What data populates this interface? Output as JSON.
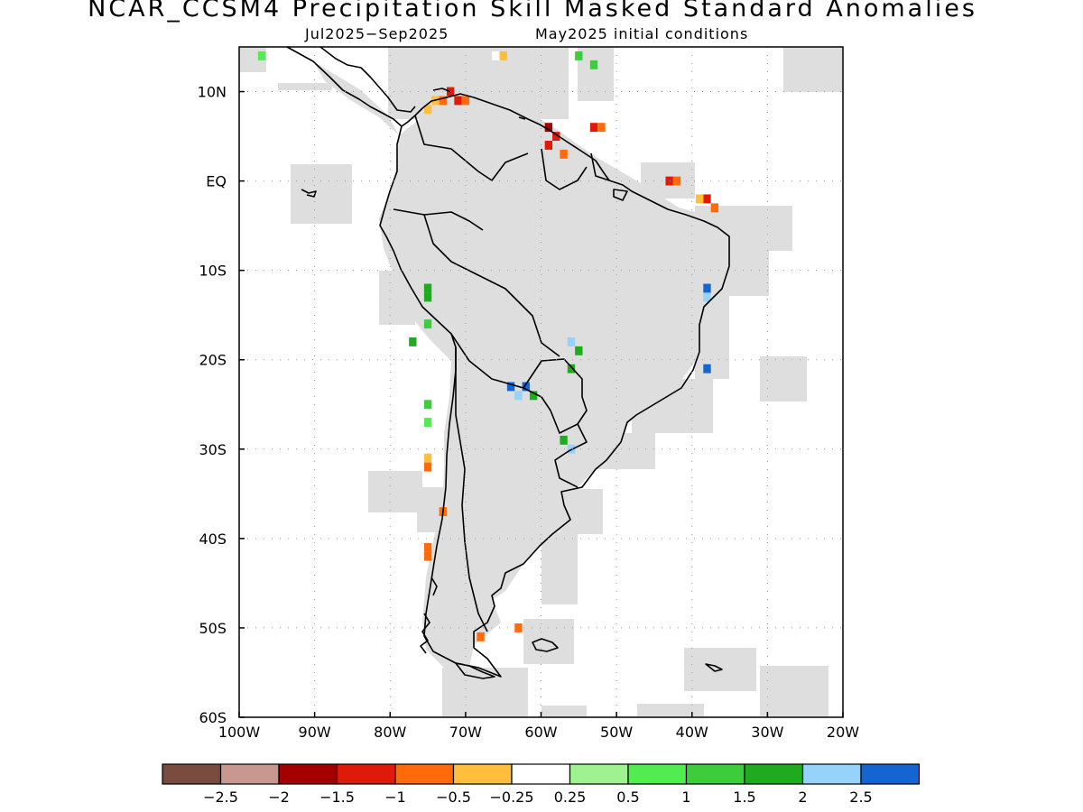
{
  "title": "NCAR_CCSM4 Precipitation Skill Masked Standard Anomalies",
  "subtitle_left": "Jul2025−Sep2025",
  "subtitle_right": "May2025 initial conditions",
  "map_extent": {
    "lon_min": -100,
    "lon_max": -20,
    "lat_min": -60,
    "lat_max": 15
  },
  "x_ticks": [
    {
      "lon": -100,
      "label": "100W"
    },
    {
      "lon": -90,
      "label": "90W"
    },
    {
      "lon": -80,
      "label": "80W"
    },
    {
      "lon": -70,
      "label": "70W"
    },
    {
      "lon": -60,
      "label": "60W"
    },
    {
      "lon": -50,
      "label": "50W"
    },
    {
      "lon": -40,
      "label": "40W"
    },
    {
      "lon": -30,
      "label": "30W"
    },
    {
      "lon": -20,
      "label": "20W"
    }
  ],
  "y_ticks": [
    {
      "lat": 10,
      "label": "10N"
    },
    {
      "lat": 0,
      "label": "EQ"
    },
    {
      "lat": -10,
      "label": "10S"
    },
    {
      "lat": -20,
      "label": "20S"
    },
    {
      "lat": -30,
      "label": "30S"
    },
    {
      "lat": -40,
      "label": "40S"
    },
    {
      "lat": -50,
      "label": "50S"
    },
    {
      "lat": -60,
      "label": "60S"
    }
  ],
  "colors": {
    "mask": "#dedede",
    "coast": "#000000",
    "grid": "#999999"
  },
  "colorbar": {
    "colors": [
      "#7a4c40",
      "#c89890",
      "#a50000",
      "#e01a0a",
      "#ff6a0a",
      "#ffbe3c",
      "#ffffff",
      "#a0f290",
      "#50ec50",
      "#3ccc3c",
      "#20aa20",
      "#96d2fa",
      "#1464d2"
    ],
    "labels": [
      "−2.5",
      "−2",
      "−1.5",
      "−1",
      "−0.5",
      "−0.25",
      "0.25",
      "0.5",
      "1",
      "1.5",
      "2",
      "2.5"
    ]
  },
  "anomaly_cells": [
    {
      "lon": -72,
      "lat": 10,
      "v": -1.5
    },
    {
      "lon": -71,
      "lat": 9,
      "v": -1.5
    },
    {
      "lon": -73,
      "lat": 9,
      "v": -1
    },
    {
      "lon": -74,
      "lat": 9,
      "v": -0.5
    },
    {
      "lon": -75,
      "lat": 8,
      "v": -0.5
    },
    {
      "lon": -70,
      "lat": 9,
      "v": -1
    },
    {
      "lon": -59,
      "lat": 6,
      "v": -2
    },
    {
      "lon": -58,
      "lat": 5,
      "v": -1.5
    },
    {
      "lon": -59,
      "lat": 4,
      "v": -1.5
    },
    {
      "lon": -57,
      "lat": 3,
      "v": -1
    },
    {
      "lon": -53,
      "lat": 6,
      "v": -1.5
    },
    {
      "lon": -52,
      "lat": 6,
      "v": -1
    },
    {
      "lon": -43,
      "lat": 0,
      "v": -1.5
    },
    {
      "lon": -42,
      "lat": 0,
      "v": -1
    },
    {
      "lon": -38,
      "lat": -2,
      "v": -1.5
    },
    {
      "lon": -37,
      "lat": -3,
      "v": -1
    },
    {
      "lon": -39,
      "lat": -2,
      "v": -0.5
    },
    {
      "lon": -65,
      "lat": 14,
      "v": -0.5
    },
    {
      "lon": -66,
      "lat": 14,
      "v": -0.25
    },
    {
      "lon": -97,
      "lat": 14,
      "v": 0.5
    },
    {
      "lon": -55,
      "lat": 14,
      "v": 1
    },
    {
      "lon": -53,
      "lat": 13,
      "v": 1
    },
    {
      "lon": -75,
      "lat": -12,
      "v": 1.5
    },
    {
      "lon": -75,
      "lat": -13,
      "v": 1.5
    },
    {
      "lon": -77,
      "lat": -18,
      "v": 1.5
    },
    {
      "lon": -75,
      "lat": -16,
      "v": 1
    },
    {
      "lon": -56,
      "lat": -18,
      "v": 2
    },
    {
      "lon": -55,
      "lat": -19,
      "v": 1.5
    },
    {
      "lon": -56,
      "lat": -21,
      "v": 1.5
    },
    {
      "lon": -38,
      "lat": -12,
      "v": 2.5
    },
    {
      "lon": -38,
      "lat": -13,
      "v": 2
    },
    {
      "lon": -38,
      "lat": -21,
      "v": 2.5
    },
    {
      "lon": -64,
      "lat": -23,
      "v": 2.5
    },
    {
      "lon": -62,
      "lat": -23,
      "v": 2.5
    },
    {
      "lon": -63,
      "lat": -24,
      "v": 2
    },
    {
      "lon": -61,
      "lat": -24,
      "v": 1.5
    },
    {
      "lon": -75,
      "lat": -25,
      "v": 1
    },
    {
      "lon": -75,
      "lat": -27,
      "v": 0.5
    },
    {
      "lon": -57,
      "lat": -29,
      "v": 1.5
    },
    {
      "lon": -56,
      "lat": -30,
      "v": 2
    },
    {
      "lon": -75,
      "lat": -31,
      "v": -0.5
    },
    {
      "lon": -75,
      "lat": -32,
      "v": -1
    },
    {
      "lon": -73,
      "lat": -37,
      "v": -1
    },
    {
      "lon": -75,
      "lat": -41,
      "v": -1
    },
    {
      "lon": -75,
      "lat": -42,
      "v": -1
    },
    {
      "lon": -63,
      "lat": -50,
      "v": -1
    },
    {
      "lon": -68,
      "lat": -51,
      "v": -1
    }
  ]
}
